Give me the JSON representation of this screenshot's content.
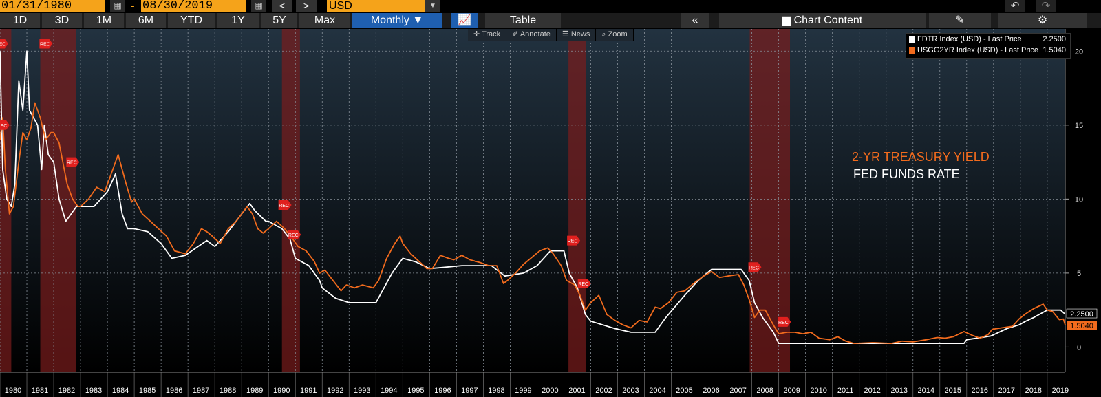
{
  "controls": {
    "start_date": "01/31/1980",
    "dash": "-",
    "end_date": "08/30/2019",
    "prev": "<",
    "next": ">",
    "currency": "USD",
    "ranges": [
      "1D",
      "3D",
      "1M",
      "6M",
      "YTD",
      "1Y",
      "5Y",
      "Max"
    ],
    "period": "Monthly ▼",
    "table_label": "Table",
    "collapse": "«",
    "chart_content_label": "Chart Content",
    "tools": [
      "Track",
      "Annotate",
      "News",
      "Zoom"
    ]
  },
  "legend": [
    {
      "label": "FDTR Index (USD) - Last Price",
      "value": "2.2500",
      "color": "#ffffff"
    },
    {
      "label": "USGG2YR Index (USD) - Last Price",
      "value": "1.5040",
      "color": "#f26b1d"
    }
  ],
  "annotations": {
    "treasury": "2-YR TREASURY YIELD",
    "fed": "FED FUNDS RATE"
  },
  "chart_data": {
    "type": "line",
    "xlim": [
      1980.0,
      2019.67
    ],
    "ylim": [
      -1.7,
      21.5
    ],
    "yticks": [
      0,
      5,
      10,
      15,
      20
    ],
    "xticks": [
      "1980",
      "1981",
      "1982",
      "1983",
      "1984",
      "1985",
      "1986",
      "1987",
      "1988",
      "1989",
      "1990",
      "1991",
      "1992",
      "1993",
      "1994",
      "1995",
      "1996",
      "1997",
      "1998",
      "1999",
      "2000",
      "2001",
      "2002",
      "2003",
      "2004",
      "2005",
      "2006",
      "2007",
      "2008",
      "2009",
      "2010",
      "2011",
      "2012",
      "2013",
      "2014",
      "2015",
      "2016",
      "2017",
      "2018",
      "2019"
    ],
    "recession_marker": "REC",
    "recessions": [
      [
        1980.0,
        1980.42
      ],
      [
        1981.5,
        1982.83
      ],
      [
        1990.5,
        1991.17
      ],
      [
        2001.17,
        2001.83
      ],
      [
        2007.92,
        2009.42
      ]
    ],
    "end_labels": {
      "fed": "2.2500",
      "treasury": "1.5040"
    },
    "series": [
      {
        "name": "FDTR Index (USD) - Last Price",
        "color": "#ffffff",
        "points": [
          [
            1980.0,
            20.0
          ],
          [
            1980.1,
            12.0
          ],
          [
            1980.25,
            10.0
          ],
          [
            1980.42,
            9.5
          ],
          [
            1980.55,
            11.0
          ],
          [
            1980.7,
            18.0
          ],
          [
            1980.85,
            16.0
          ],
          [
            1981.0,
            20.0
          ],
          [
            1981.1,
            16.0
          ],
          [
            1981.4,
            15.0
          ],
          [
            1981.55,
            12.0
          ],
          [
            1981.65,
            15.0
          ],
          [
            1981.8,
            13.0
          ],
          [
            1982.0,
            12.5
          ],
          [
            1982.2,
            10.0
          ],
          [
            1982.45,
            8.5
          ],
          [
            1982.85,
            9.5
          ],
          [
            1983.5,
            9.5
          ],
          [
            1984.0,
            10.5
          ],
          [
            1984.3,
            11.7
          ],
          [
            1984.55,
            9.0
          ],
          [
            1984.75,
            8.0
          ],
          [
            1985.0,
            8.0
          ],
          [
            1985.5,
            7.8
          ],
          [
            1986.0,
            7.0
          ],
          [
            1986.4,
            6.0
          ],
          [
            1986.9,
            6.2
          ],
          [
            1987.3,
            6.7
          ],
          [
            1987.7,
            7.2
          ],
          [
            1988.0,
            6.8
          ],
          [
            1988.5,
            7.8
          ],
          [
            1989.0,
            9.0
          ],
          [
            1989.3,
            9.7
          ],
          [
            1989.5,
            9.2
          ],
          [
            1989.9,
            8.5
          ],
          [
            1990.0,
            8.5
          ],
          [
            1990.5,
            8.0
          ],
          [
            1990.8,
            7.3
          ],
          [
            1991.0,
            6.0
          ],
          [
            1991.5,
            5.5
          ],
          [
            1991.9,
            4.5
          ],
          [
            1992.0,
            4.0
          ],
          [
            1992.5,
            3.3
          ],
          [
            1993.0,
            3.0
          ],
          [
            1994.0,
            3.0
          ],
          [
            1994.3,
            4.0
          ],
          [
            1994.6,
            5.0
          ],
          [
            1995.0,
            6.0
          ],
          [
            1995.5,
            5.75
          ],
          [
            1996.0,
            5.3
          ],
          [
            1997.2,
            5.5
          ],
          [
            1998.3,
            5.5
          ],
          [
            1998.8,
            4.8
          ],
          [
            1999.5,
            5.0
          ],
          [
            2000.0,
            5.5
          ],
          [
            2000.5,
            6.5
          ],
          [
            2001.0,
            6.5
          ],
          [
            2001.2,
            5.0
          ],
          [
            2001.5,
            4.0
          ],
          [
            2001.8,
            2.2
          ],
          [
            2002.0,
            1.75
          ],
          [
            2002.9,
            1.25
          ],
          [
            2003.5,
            1.0
          ],
          [
            2004.4,
            1.0
          ],
          [
            2004.8,
            2.0
          ],
          [
            2005.5,
            3.5
          ],
          [
            2006.0,
            4.5
          ],
          [
            2006.5,
            5.25
          ],
          [
            2007.6,
            5.25
          ],
          [
            2007.9,
            4.5
          ],
          [
            2008.1,
            3.0
          ],
          [
            2008.4,
            2.0
          ],
          [
            2008.8,
            1.0
          ],
          [
            2009.0,
            0.25
          ],
          [
            2015.9,
            0.25
          ],
          [
            2016.0,
            0.5
          ],
          [
            2016.9,
            0.75
          ],
          [
            2017.2,
            1.0
          ],
          [
            2017.5,
            1.25
          ],
          [
            2017.95,
            1.5
          ],
          [
            2018.2,
            1.75
          ],
          [
            2018.5,
            2.0
          ],
          [
            2018.75,
            2.25
          ],
          [
            2019.0,
            2.5
          ],
          [
            2019.5,
            2.5
          ],
          [
            2019.65,
            2.25
          ]
        ]
      },
      {
        "name": "USGG2YR Index (USD) - Last Price",
        "color": "#f26b1d",
        "points": [
          [
            1980.0,
            14.0
          ],
          [
            1980.1,
            15.5
          ],
          [
            1980.2,
            12.0
          ],
          [
            1980.35,
            9.0
          ],
          [
            1980.5,
            9.5
          ],
          [
            1980.7,
            12.5
          ],
          [
            1980.85,
            14.5
          ],
          [
            1981.0,
            14.0
          ],
          [
            1981.15,
            14.8
          ],
          [
            1981.3,
            16.5
          ],
          [
            1981.5,
            15.5
          ],
          [
            1981.7,
            14.0
          ],
          [
            1981.9,
            14.5
          ],
          [
            1982.0,
            14.5
          ],
          [
            1982.2,
            13.8
          ],
          [
            1982.5,
            11.0
          ],
          [
            1982.7,
            10.0
          ],
          [
            1982.9,
            9.5
          ],
          [
            1983.0,
            9.5
          ],
          [
            1983.3,
            10.0
          ],
          [
            1983.6,
            10.8
          ],
          [
            1983.9,
            10.5
          ],
          [
            1984.2,
            12.0
          ],
          [
            1984.4,
            13.0
          ],
          [
            1984.7,
            11.0
          ],
          [
            1984.9,
            9.8
          ],
          [
            1985.0,
            10.0
          ],
          [
            1985.3,
            9.0
          ],
          [
            1985.6,
            8.5
          ],
          [
            1985.9,
            8.0
          ],
          [
            1986.2,
            7.5
          ],
          [
            1986.5,
            6.5
          ],
          [
            1986.9,
            6.3
          ],
          [
            1987.2,
            7.0
          ],
          [
            1987.5,
            8.0
          ],
          [
            1987.7,
            7.8
          ],
          [
            1987.9,
            7.5
          ],
          [
            1988.2,
            7.0
          ],
          [
            1988.5,
            8.0
          ],
          [
            1988.8,
            8.5
          ],
          [
            1989.0,
            9.0
          ],
          [
            1989.2,
            9.5
          ],
          [
            1989.4,
            9.0
          ],
          [
            1989.6,
            8.0
          ],
          [
            1989.8,
            7.7
          ],
          [
            1990.0,
            8.0
          ],
          [
            1990.3,
            8.5
          ],
          [
            1990.6,
            8.0
          ],
          [
            1990.9,
            7.3
          ],
          [
            1991.1,
            6.8
          ],
          [
            1991.4,
            6.5
          ],
          [
            1991.7,
            5.8
          ],
          [
            1991.9,
            5.0
          ],
          [
            1992.1,
            5.2
          ],
          [
            1992.4,
            4.5
          ],
          [
            1992.7,
            3.8
          ],
          [
            1992.9,
            4.2
          ],
          [
            1993.2,
            4.0
          ],
          [
            1993.5,
            4.2
          ],
          [
            1993.9,
            4.0
          ],
          [
            1994.1,
            4.5
          ],
          [
            1994.4,
            6.0
          ],
          [
            1994.7,
            7.0
          ],
          [
            1994.9,
            7.5
          ],
          [
            1995.0,
            7.0
          ],
          [
            1995.3,
            6.3
          ],
          [
            1995.6,
            5.8
          ],
          [
            1995.9,
            5.3
          ],
          [
            1996.1,
            5.3
          ],
          [
            1996.4,
            6.2
          ],
          [
            1996.7,
            6.0
          ],
          [
            1996.9,
            5.9
          ],
          [
            1997.2,
            6.2
          ],
          [
            1997.5,
            5.9
          ],
          [
            1997.9,
            5.7
          ],
          [
            1998.2,
            5.5
          ],
          [
            1998.5,
            5.5
          ],
          [
            1998.75,
            4.3
          ],
          [
            1998.9,
            4.5
          ],
          [
            1999.2,
            5.0
          ],
          [
            1999.5,
            5.6
          ],
          [
            1999.9,
            6.2
          ],
          [
            2000.1,
            6.5
          ],
          [
            2000.4,
            6.7
          ],
          [
            2000.6,
            6.3
          ],
          [
            2000.9,
            5.5
          ],
          [
            2001.1,
            4.5
          ],
          [
            2001.4,
            4.2
          ],
          [
            2001.6,
            3.5
          ],
          [
            2001.8,
            2.5
          ],
          [
            2002.0,
            3.0
          ],
          [
            2002.3,
            3.5
          ],
          [
            2002.6,
            2.2
          ],
          [
            2002.9,
            1.8
          ],
          [
            2003.2,
            1.5
          ],
          [
            2003.5,
            1.3
          ],
          [
            2003.8,
            1.8
          ],
          [
            2004.1,
            1.7
          ],
          [
            2004.4,
            2.7
          ],
          [
            2004.6,
            2.6
          ],
          [
            2004.9,
            3.0
          ],
          [
            2005.2,
            3.7
          ],
          [
            2005.5,
            3.8
          ],
          [
            2005.9,
            4.4
          ],
          [
            2006.2,
            4.8
          ],
          [
            2006.5,
            5.1
          ],
          [
            2006.8,
            4.7
          ],
          [
            2007.1,
            4.8
          ],
          [
            2007.5,
            4.9
          ],
          [
            2007.7,
            4.2
          ],
          [
            2007.9,
            3.2
          ],
          [
            2008.1,
            2.0
          ],
          [
            2008.3,
            2.5
          ],
          [
            2008.5,
            2.5
          ],
          [
            2008.8,
            1.5
          ],
          [
            2009.0,
            0.9
          ],
          [
            2009.3,
            1.0
          ],
          [
            2009.6,
            1.0
          ],
          [
            2009.9,
            0.9
          ],
          [
            2010.2,
            1.0
          ],
          [
            2010.5,
            0.6
          ],
          [
            2010.9,
            0.5
          ],
          [
            2011.2,
            0.7
          ],
          [
            2011.5,
            0.4
          ],
          [
            2011.8,
            0.25
          ],
          [
            2012.5,
            0.3
          ],
          [
            2013.2,
            0.25
          ],
          [
            2013.6,
            0.4
          ],
          [
            2014.0,
            0.35
          ],
          [
            2014.5,
            0.5
          ],
          [
            2014.9,
            0.65
          ],
          [
            2015.2,
            0.6
          ],
          [
            2015.5,
            0.7
          ],
          [
            2015.9,
            1.05
          ],
          [
            2016.2,
            0.8
          ],
          [
            2016.5,
            0.6
          ],
          [
            2016.8,
            0.85
          ],
          [
            2016.95,
            1.2
          ],
          [
            2017.3,
            1.3
          ],
          [
            2017.7,
            1.4
          ],
          [
            2017.95,
            1.9
          ],
          [
            2018.2,
            2.25
          ],
          [
            2018.5,
            2.6
          ],
          [
            2018.85,
            2.9
          ],
          [
            2019.0,
            2.5
          ],
          [
            2019.2,
            2.4
          ],
          [
            2019.45,
            1.85
          ],
          [
            2019.6,
            1.9
          ],
          [
            2019.67,
            1.5
          ]
        ]
      }
    ]
  }
}
